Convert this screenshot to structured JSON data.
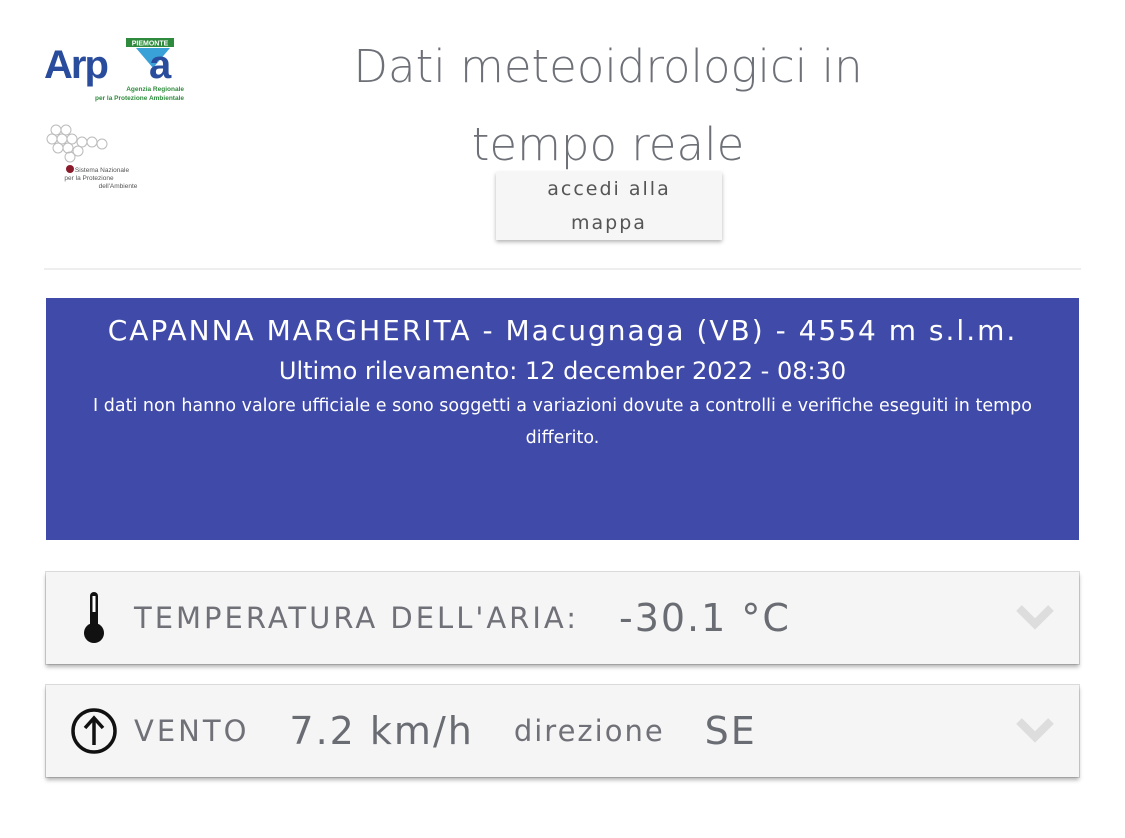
{
  "logos": {
    "arpa": {
      "text": "Arpa",
      "region": "PIEMONTE",
      "subtitle": "Agenzia Regionale per la Protezione Ambientale"
    },
    "snpa": {
      "text": "Sistema Nazionale per la Protezione dell'Ambiente"
    }
  },
  "header": {
    "title_line1": "Dati meteoidrologici in",
    "title_line2": "tempo reale",
    "map_button_line1": "accedi alla",
    "map_button_line2": "mappa"
  },
  "station": {
    "name": "CAPANNA MARGHERITA - Macugnaga (VB) - 4554 m s.l.m.",
    "last_update": "Ultimo rilevamento: 12 december 2022 - 08:30",
    "disclaimer": "I dati non hanno valore ufficiale e sono soggetti a variazioni dovute a controlli e verifiche eseguiti in tempo differito.",
    "color": "#3f4aa9"
  },
  "measures": {
    "temperature": {
      "icon": "thermometer-icon",
      "label": "TEMPERATURA DELL'ARIA:",
      "value": "-30.1 °C"
    },
    "wind": {
      "icon": "arrow-up-circle-icon",
      "label": "VENTO",
      "value": "7.2 km/h",
      "direction_label": "direzione",
      "direction": "SE"
    }
  }
}
